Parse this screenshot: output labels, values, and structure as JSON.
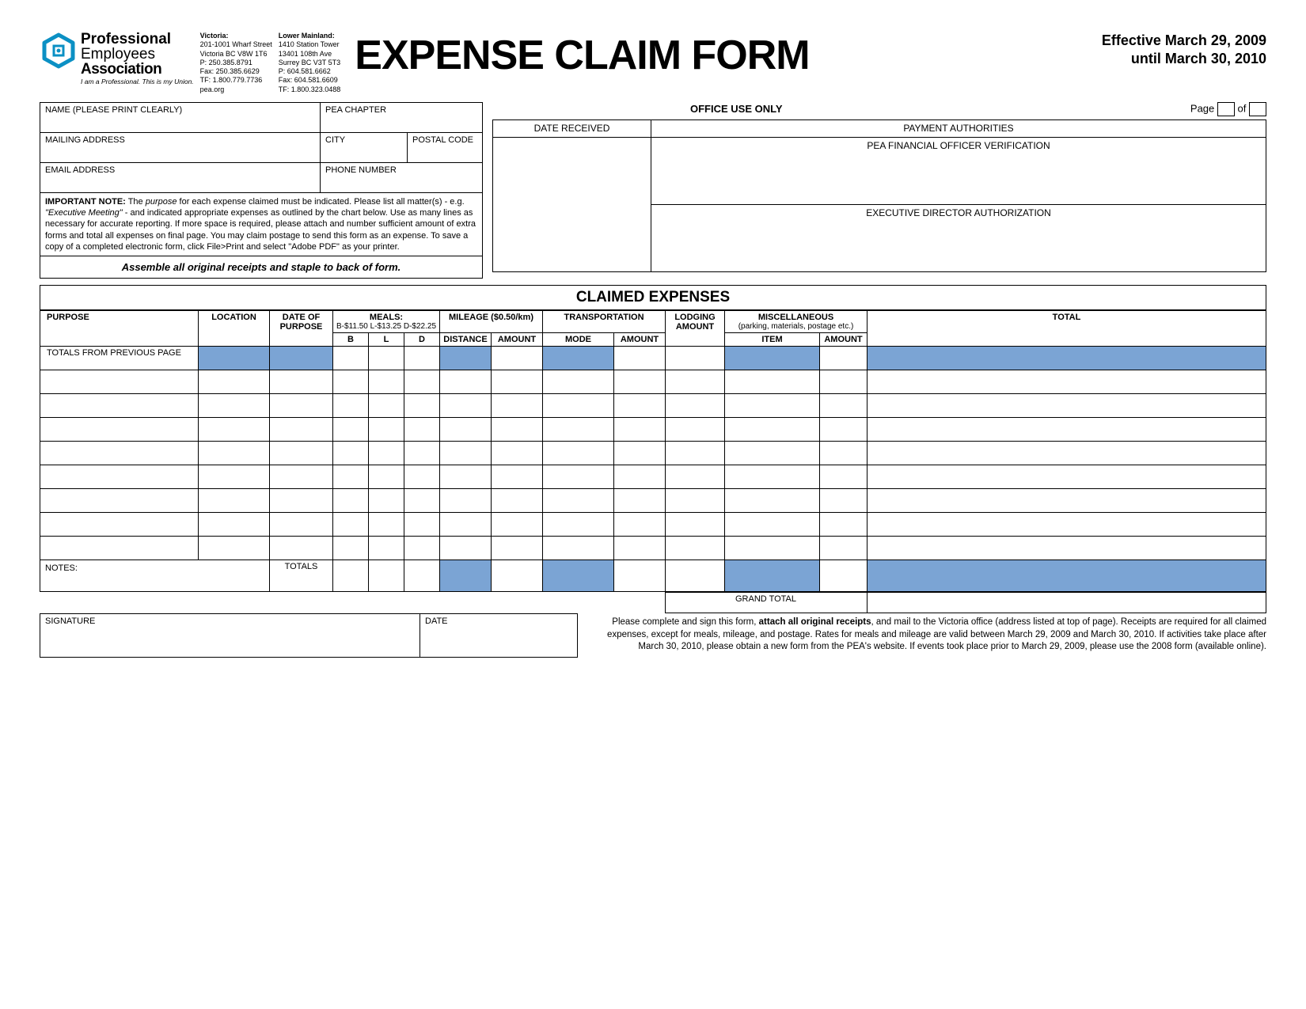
{
  "colors": {
    "shade": "#7ba4d4",
    "logo": "#0b90c4",
    "text": "#000000",
    "bg": "#ffffff"
  },
  "header": {
    "org_l1": "Professional",
    "org_l2": "Employees",
    "org_l3": "Association",
    "org_tag": "I am a Professional. This is my Union.",
    "victoria_hd": "Victoria:",
    "victoria_lines": "201-1001 Wharf Street\nVictoria BC V8W 1T6\nP: 250.385.8791\nFax: 250.385.6629\nTF: 1.800.779.7736\npea.org",
    "lm_hd": "Lower Mainland:",
    "lm_lines": "1410 Station Tower\n13401 108th Ave\nSurrey BC V3T 5T3\nP: 604.581.6662\nFax: 604.581.6609\nTF: 1.800.323.0488",
    "title": "EXPENSE CLAIM FORM",
    "eff1": "Effective March 29, 2009",
    "eff2": "until March 30, 2010"
  },
  "info": {
    "name": "NAME (PLEASE PRINT CLEARLY)",
    "chapter": "PEA CHAPTER",
    "mailing": "MAILING ADDRESS",
    "city": "CITY",
    "postal": "POSTAL CODE",
    "email": "EMAIL ADDRESS",
    "phone": "PHONE NUMBER"
  },
  "office": {
    "ouo": "OFFICE USE ONLY",
    "page": "Page",
    "of": "of",
    "date_recv": "DATE RECEIVED",
    "pay_auth": "PAYMENT AUTHORITIES",
    "fin_off": "PEA FINANCIAL OFFICER VERIFICATION",
    "exec_dir": "EXECUTIVE DIRECTOR AUTHORIZATION"
  },
  "note": {
    "lead": "IMPORTANT NOTE:",
    "body1": " The ",
    "purpose_i": "purpose",
    "body2": " for each expense claimed must be indicated. Please list all matter(s) - e.g. ",
    "meeting_i": "\"Executive Meeting\"",
    "body3": " - and indicated appropriate expenses as outlined by the chart below. Use as many lines as necessary for accurate reporting. If more space is required, please attach and number sufficient amount of extra forms and total all expenses on final page. You may claim postage to send this form as an expense. To save a copy of a completed electronic form, click File>Print and select \"Adobe PDF\" as your printer.",
    "assemble": "Assemble all original receipts and staple to back of form."
  },
  "exp": {
    "heading": "CLAIMED EXPENSES",
    "cols": {
      "purpose": "PURPOSE",
      "location": "LOCATION",
      "date": "DATE OF PURPOSE",
      "meals_hd": "MEALS:",
      "meals_rates": "B-$11.50 L-$13.25 D-$22.25",
      "b": "B",
      "l": "L",
      "d": "D",
      "mileage_hd": "MILEAGE ($0.50/km)",
      "distance": "DISTANCE",
      "amount": "AMOUNT",
      "transport_hd": "TRANSPORTATION",
      "mode": "MODE",
      "lodging": "LODGING AMOUNT",
      "misc_hd": "MISCELLANEOUS",
      "misc_sub": "(parking, materials, postage etc.)",
      "item": "ITEM",
      "total": "TOTAL"
    },
    "prev": "TOTALS FROM PREVIOUS PAGE",
    "notes": "NOTES:",
    "totals": "TOTALS",
    "grand": "GRAND TOTAL",
    "blank_rows": 8,
    "shaded_cols_prev": [
      1,
      2,
      6,
      8,
      11,
      13
    ],
    "shaded_cols_totals": [
      6,
      8,
      11,
      13
    ]
  },
  "sig": {
    "signature": "SIGNATURE",
    "date": "DATE",
    "text1": "Please complete and sign this form, ",
    "bold": "attach all original receipts",
    "text2": ", and mail to the Victoria office (address listed at top of page). Receipts are required for all claimed expenses, except for meals, mileage, and postage. Rates for meals and mileage are valid between  March 29, 2009 and March 30, 2010. If activities take place after March 30, 2010, please obtain a new form from the PEA's website. If events took place prior to March 29, 2009, please use the 2008 form (available online)."
  }
}
